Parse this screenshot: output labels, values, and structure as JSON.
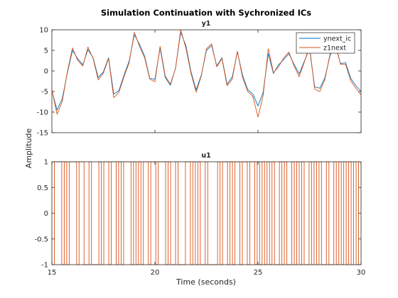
{
  "figure": {
    "title": "Simulation Continuation with Sychronized ICs",
    "ylabel": "Amplitude",
    "xlabel": "Time (seconds)"
  },
  "chart_data": [
    {
      "type": "line",
      "title": "y1",
      "xlim": [
        15,
        30
      ],
      "ylim": [
        -15,
        10
      ],
      "xticks": [
        15,
        20,
        25,
        30
      ],
      "yticks": [
        -15,
        -10,
        -5,
        0,
        5,
        10
      ],
      "xtick_labels": [
        "15",
        "20",
        "25",
        "30"
      ],
      "ytick_labels": [
        "-15",
        "-10",
        "-5",
        "0",
        "5",
        "10"
      ],
      "legend": {
        "position": "top-right"
      },
      "series": [
        {
          "name": "ynext_ic",
          "color": "#0072bd",
          "x": [
            15.0,
            15.25,
            15.5,
            15.75,
            16.0,
            16.25,
            16.5,
            16.75,
            17.0,
            17.25,
            17.5,
            17.75,
            18.0,
            18.25,
            18.5,
            18.75,
            19.0,
            19.25,
            19.5,
            19.75,
            20.0,
            20.25,
            20.5,
            20.75,
            21.0,
            21.25,
            21.5,
            21.75,
            22.0,
            22.25,
            22.5,
            22.75,
            23.0,
            23.25,
            23.5,
            23.75,
            24.0,
            24.25,
            24.5,
            24.75,
            25.0,
            25.25,
            25.5,
            25.75,
            26.0,
            26.25,
            26.5,
            26.75,
            27.0,
            27.25,
            27.5,
            27.75,
            28.0,
            28.25,
            28.5,
            28.75,
            29.0,
            29.25,
            29.5,
            29.75,
            30.0
          ],
          "y": [
            -4.8,
            -9.5,
            -6.8,
            -0.5,
            5.0,
            3.0,
            1.5,
            5.2,
            3.2,
            -1.6,
            -0.2,
            3.2,
            -5.6,
            -4.8,
            -1.0,
            2.4,
            8.8,
            6.5,
            3.6,
            -1.8,
            -2.0,
            5.6,
            -1.6,
            -3.5,
            0.7,
            9.4,
            6.2,
            -0.2,
            -4.6,
            -1.0,
            5.0,
            6.2,
            1.2,
            3.2,
            -3.2,
            -1.5,
            4.6,
            -1.0,
            -4.5,
            -5.6,
            -8.5,
            -5.2,
            4.2,
            -0.6,
            1.5,
            2.8,
            4.2,
            1.6,
            -0.7,
            2.4,
            5.4,
            -3.9,
            -4.2,
            -1.6,
            3.8,
            6.4,
            1.8,
            2.0,
            -1.8,
            -3.6,
            -5.0
          ]
        },
        {
          "name": "z1next",
          "color": "#d95319",
          "x": [
            15.0,
            15.25,
            15.5,
            15.75,
            16.0,
            16.25,
            16.5,
            16.75,
            17.0,
            17.25,
            17.5,
            17.75,
            18.0,
            18.25,
            18.5,
            18.75,
            19.0,
            19.25,
            19.5,
            19.75,
            20.0,
            20.25,
            20.5,
            20.75,
            21.0,
            21.25,
            21.5,
            21.75,
            22.0,
            22.25,
            22.5,
            22.75,
            23.0,
            23.25,
            23.5,
            23.75,
            24.0,
            24.25,
            24.5,
            24.75,
            25.0,
            25.25,
            25.5,
            25.75,
            26.0,
            26.25,
            26.5,
            26.75,
            27.0,
            27.25,
            27.5,
            27.75,
            28.0,
            28.25,
            28.5,
            28.75,
            29.0,
            29.25,
            29.5,
            29.75,
            30.0
          ],
          "y": [
            -4.6,
            -10.5,
            -7.5,
            -0.2,
            5.6,
            2.6,
            1.2,
            5.8,
            3.0,
            -2.2,
            -0.5,
            3.0,
            -6.5,
            -5.2,
            -1.4,
            2.0,
            9.4,
            6.0,
            3.2,
            -2.0,
            -2.6,
            6.0,
            -1.2,
            -3.2,
            0.6,
            10.0,
            5.6,
            -0.6,
            -5.2,
            -1.2,
            5.4,
            6.6,
            1.0,
            3.0,
            -3.6,
            -2.0,
            4.8,
            -1.6,
            -5.0,
            -6.2,
            -11.2,
            -6.0,
            5.4,
            -0.4,
            1.0,
            3.2,
            4.6,
            1.2,
            -1.4,
            2.2,
            6.0,
            -4.4,
            -5.0,
            -2.0,
            4.2,
            7.0,
            1.6,
            1.6,
            -2.4,
            -4.2,
            -5.8
          ]
        }
      ]
    },
    {
      "type": "line",
      "title": "u1",
      "xlim": [
        15,
        30
      ],
      "ylim": [
        -1,
        1
      ],
      "xticks": [
        15,
        20,
        25,
        30
      ],
      "yticks": [
        -1,
        -0.5,
        0,
        0.5,
        1
      ],
      "xtick_labels": [
        "15",
        "20",
        "25",
        "30"
      ],
      "ytick_labels": [
        "-1",
        "-0.5",
        "0",
        "0.5",
        "1"
      ],
      "series": [
        {
          "color": "#d95319",
          "switch_times": [
            15.0,
            15.12,
            15.48,
            15.6,
            15.72,
            15.84,
            16.2,
            16.32,
            16.56,
            16.8,
            16.92,
            17.28,
            17.4,
            17.52,
            17.76,
            17.88,
            18.12,
            18.24,
            18.36,
            18.48,
            18.84,
            18.96,
            19.08,
            19.2,
            19.32,
            19.44,
            19.68,
            19.8,
            20.04,
            20.16,
            20.52,
            20.64,
            20.76,
            21.0,
            21.12,
            21.48,
            21.72,
            21.84,
            21.96,
            22.08,
            22.2,
            22.44,
            22.56,
            23.04,
            23.16,
            23.28,
            23.52,
            23.64,
            23.76,
            23.88,
            24.12,
            24.24,
            24.48,
            24.6,
            24.84,
            24.96,
            25.08,
            25.2,
            25.32,
            25.44,
            25.56,
            25.68,
            25.8,
            26.04,
            26.16,
            26.28,
            26.4,
            26.64,
            26.76,
            26.88,
            27.0,
            27.12,
            27.24,
            27.48,
            27.6,
            27.72,
            27.84,
            27.96,
            28.08,
            28.32,
            28.44,
            28.68,
            28.8,
            28.92,
            29.04,
            29.16,
            29.28,
            29.4,
            29.52,
            29.64,
            29.76,
            29.88,
            30.0
          ],
          "initial": -1
        }
      ]
    }
  ]
}
